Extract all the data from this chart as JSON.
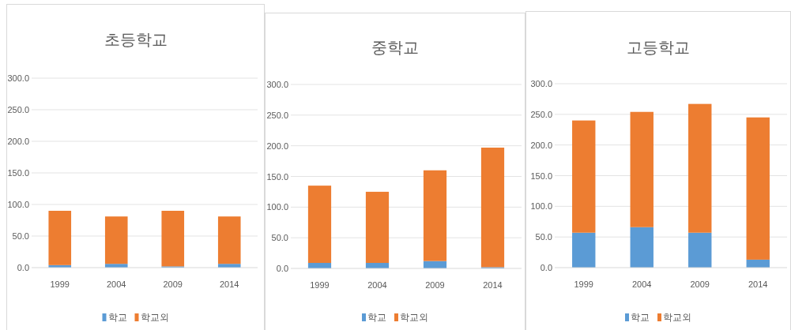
{
  "chart_data": [
    {
      "type": "bar",
      "title": "초등학교",
      "categories": [
        "1999",
        "2004",
        "2009",
        "2014"
      ],
      "stacked": true,
      "series": [
        {
          "name": "학교",
          "color": "#5b9bd5",
          "values": [
            4,
            6,
            2,
            6
          ]
        },
        {
          "name": "학교외",
          "color": "#ed7d31",
          "values": [
            86,
            75,
            88,
            75
          ]
        }
      ],
      "ylim": [
        0,
        300
      ],
      "yticks": [
        {
          "value": 0,
          "label": "0.0"
        },
        {
          "value": 50,
          "label": "50.0"
        },
        {
          "value": 100,
          "label": "100.0"
        },
        {
          "value": 150,
          "label": "150.0"
        },
        {
          "value": 200,
          "label": "200.0"
        },
        {
          "value": 250,
          "label": "250.0"
        },
        {
          "value": 300,
          "label": "300.0"
        }
      ],
      "grid": "y",
      "legend": "bottom"
    },
    {
      "type": "bar",
      "title": "중학교",
      "categories": [
        "1999",
        "2004",
        "2009",
        "2014"
      ],
      "stacked": true,
      "series": [
        {
          "name": "학교",
          "color": "#5b9bd5",
          "values": [
            9,
            9,
            12,
            2
          ]
        },
        {
          "name": "학교외",
          "color": "#ed7d31",
          "values": [
            126,
            116,
            148,
            195
          ]
        }
      ],
      "ylim": [
        0,
        300
      ],
      "yticks": [
        {
          "value": 0,
          "label": "0.0"
        },
        {
          "value": 50,
          "label": "50.0"
        },
        {
          "value": 100,
          "label": "100.0"
        },
        {
          "value": 150,
          "label": "150.0"
        },
        {
          "value": 200,
          "label": "200.0"
        },
        {
          "value": 250,
          "label": "250.0"
        },
        {
          "value": 300,
          "label": "300.0"
        }
      ],
      "grid": "y",
      "legend": "bottom"
    },
    {
      "type": "bar",
      "title": "고등학교",
      "categories": [
        "1999",
        "2004",
        "2009",
        "2014"
      ],
      "stacked": true,
      "series": [
        {
          "name": "학교",
          "color": "#5b9bd5",
          "values": [
            57,
            66,
            57,
            13
          ]
        },
        {
          "name": "학교외",
          "color": "#ed7d31",
          "values": [
            183,
            188,
            210,
            232
          ]
        }
      ],
      "ylim": [
        0,
        300
      ],
      "yticks": [
        {
          "value": 0,
          "label": "0.0"
        },
        {
          "value": 50,
          "label": "50.0"
        },
        {
          "value": 100,
          "label": "100.0"
        },
        {
          "value": 150,
          "label": "150.0"
        },
        {
          "value": 200,
          "label": "200.0"
        },
        {
          "value": 250,
          "label": "250.0"
        },
        {
          "value": 300,
          "label": "300.0"
        }
      ],
      "grid": "y",
      "legend": "bottom"
    }
  ]
}
